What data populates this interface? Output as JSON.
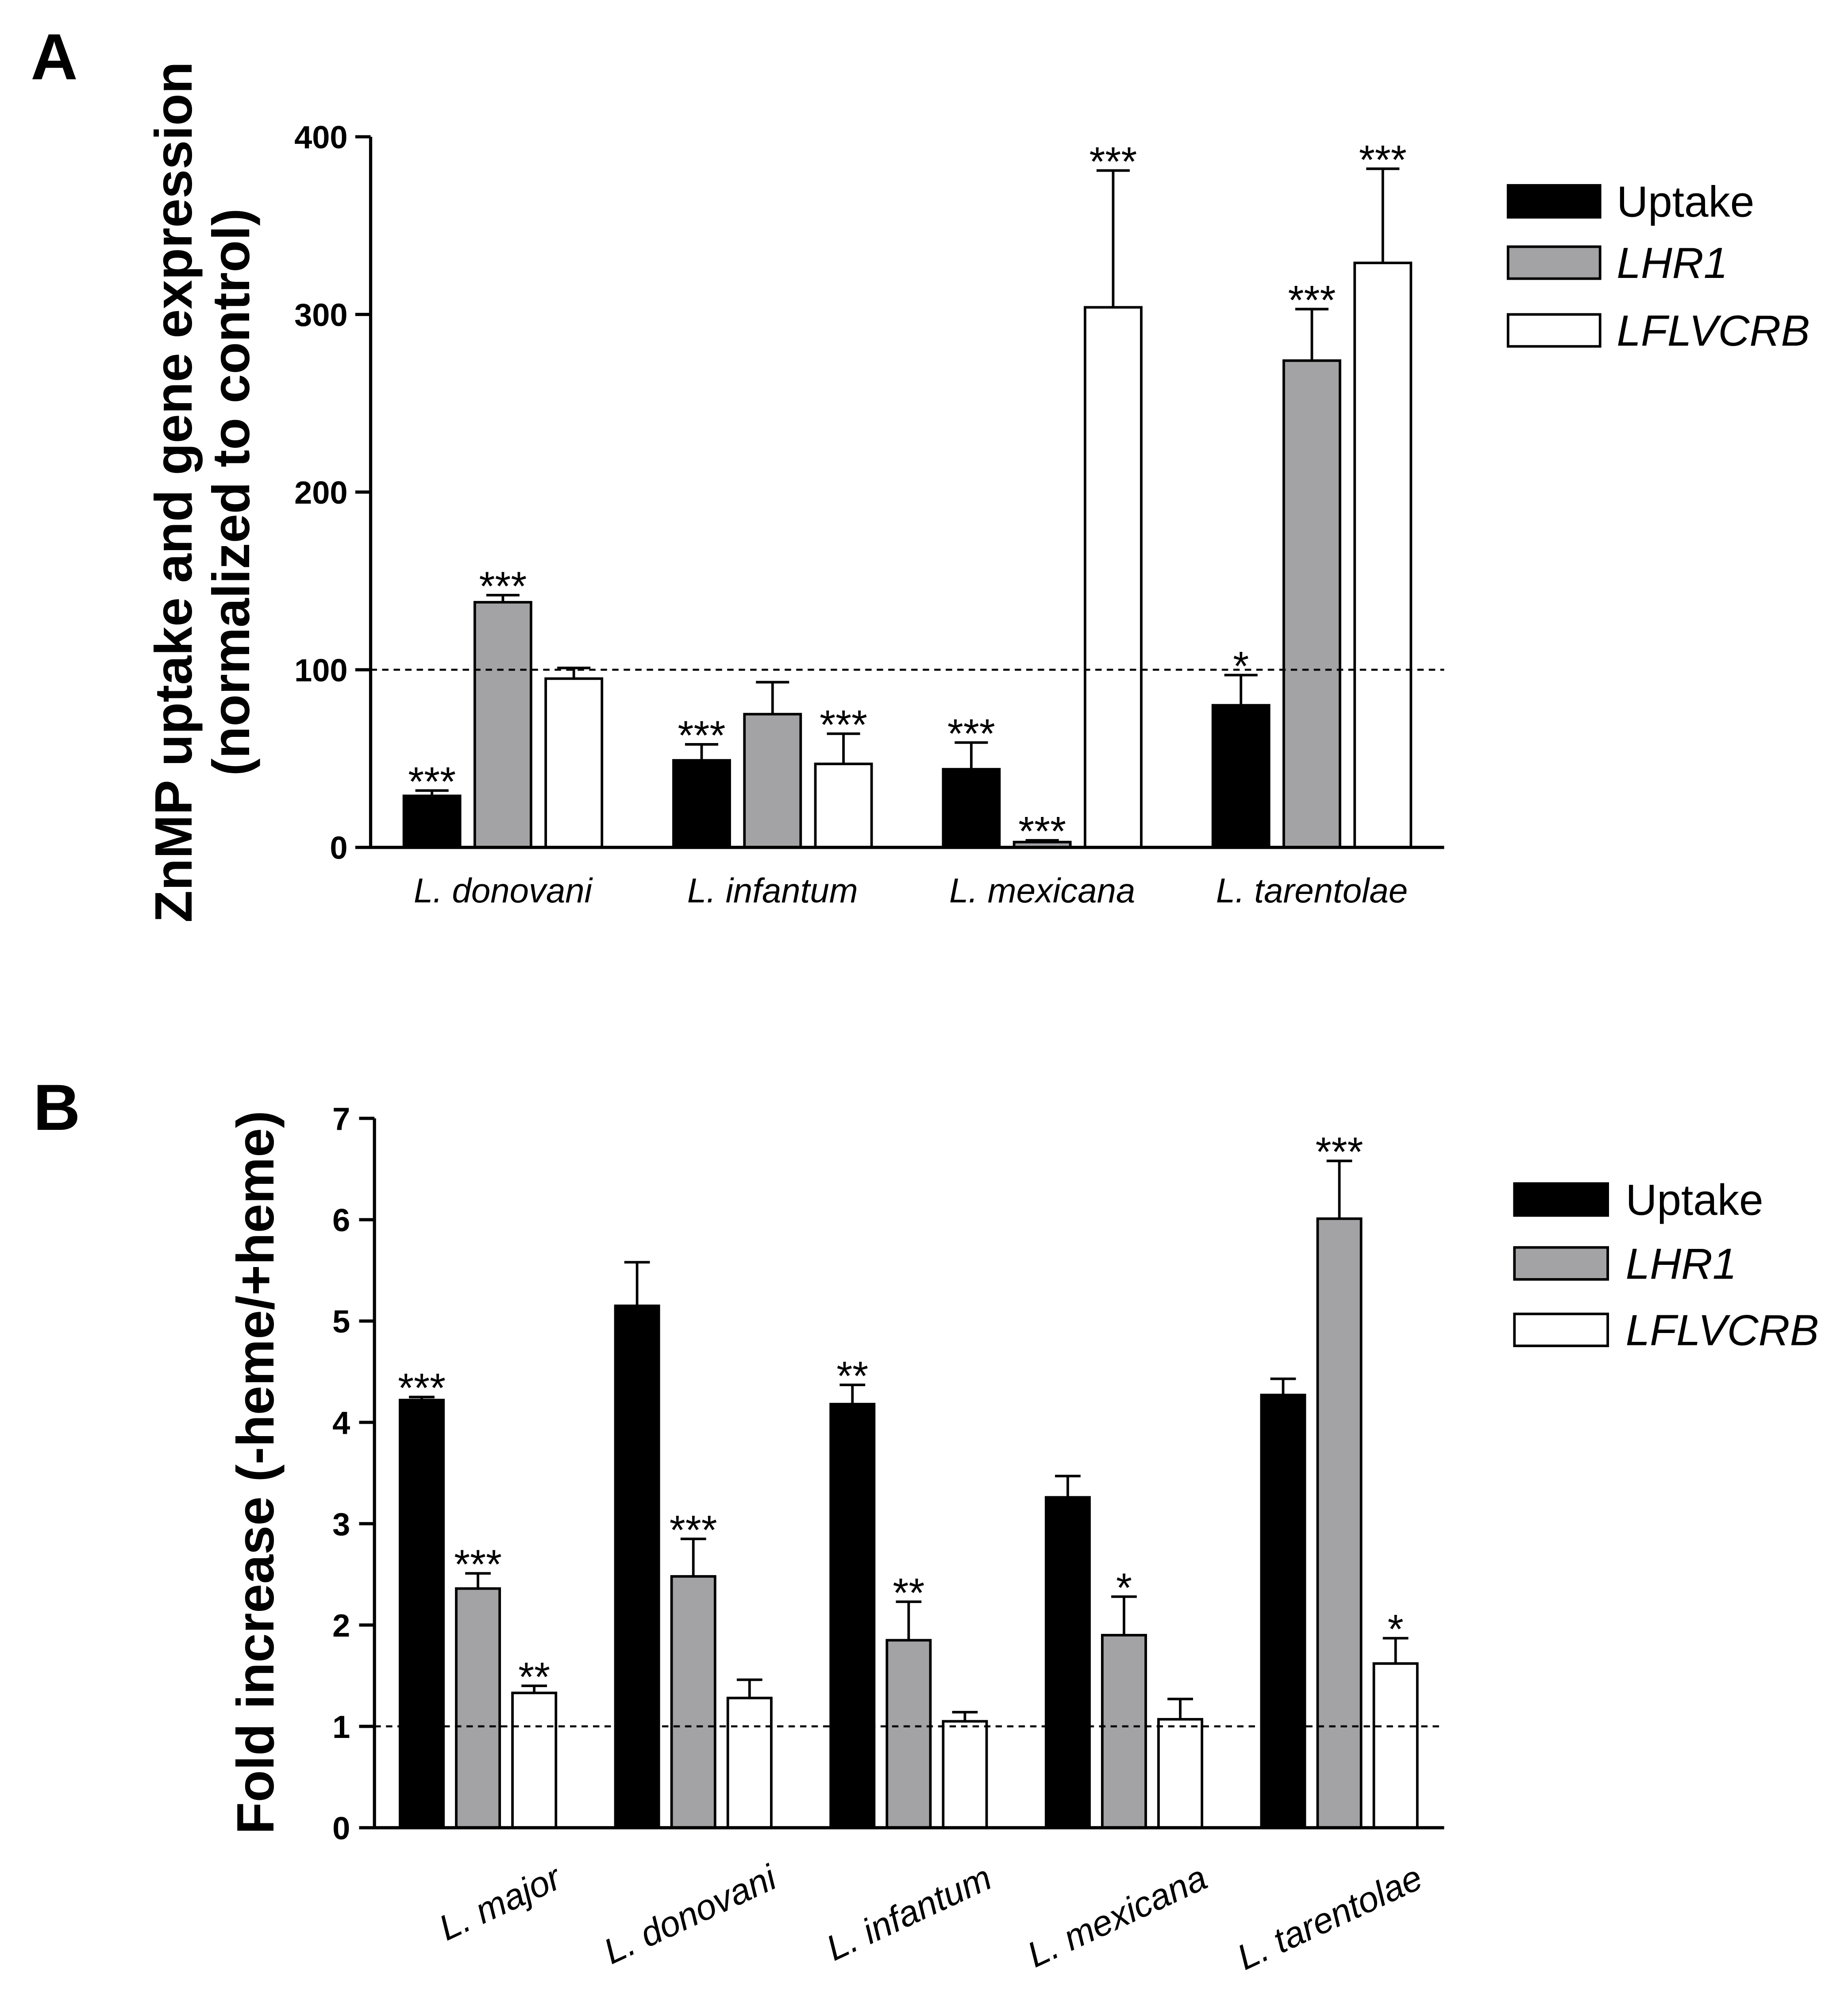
{
  "chart_data": [
    {
      "panel": "A",
      "type": "bar",
      "categories": [
        "L. donovani",
        "L. infantum",
        "L. mexicana",
        "L. tarentolae"
      ],
      "series": [
        {
          "name": "Uptake",
          "color": "#000000",
          "values": [
            29,
            49,
            44,
            80
          ],
          "errors": [
            3,
            9,
            15,
            17
          ],
          "significance": [
            "***",
            "***",
            "***",
            "*"
          ]
        },
        {
          "name": "LHR1",
          "color": "#a3a3a6",
          "values": [
            138,
            75,
            3,
            274
          ],
          "errors": [
            4,
            18,
            1,
            29
          ],
          "significance": [
            "***",
            null,
            "***",
            "***"
          ]
        },
        {
          "name": "LFLVCRB",
          "color": "#ffffff",
          "values": [
            95,
            47,
            304,
            329
          ],
          "errors": [
            6,
            17,
            77,
            53
          ],
          "significance": [
            null,
            "***",
            "***",
            "***"
          ]
        }
      ],
      "ylabel": [
        "ZnMP uptake and gene expression",
        "(normalized to control)"
      ],
      "ylim": [
        0,
        400
      ],
      "yticks": [
        0,
        100,
        200,
        300,
        400
      ],
      "reference_line": 100,
      "legend_position": "right",
      "grid": false
    },
    {
      "panel": "B",
      "type": "bar",
      "categories": [
        "L. major",
        "L. donovani",
        "L. infantum",
        "L. mexicana",
        "L. tarentolae"
      ],
      "series": [
        {
          "name": "Uptake",
          "color": "#000000",
          "values": [
            4.22,
            5.15,
            4.18,
            3.26,
            4.27
          ],
          "errors": [
            0.03,
            0.43,
            0.19,
            0.21,
            0.16
          ],
          "significance": [
            "***",
            null,
            "**",
            null,
            null
          ]
        },
        {
          "name": "LHR1",
          "color": "#a3a3a6",
          "values": [
            2.36,
            2.48,
            1.85,
            1.9,
            6.01
          ],
          "errors": [
            0.15,
            0.37,
            0.38,
            0.38,
            0.57
          ],
          "significance": [
            "***",
            "***",
            "**",
            "*",
            "***"
          ]
        },
        {
          "name": "LFLVCRB",
          "color": "#ffffff",
          "values": [
            1.33,
            1.28,
            1.05,
            1.07,
            1.62
          ],
          "errors": [
            0.07,
            0.18,
            0.09,
            0.2,
            0.25
          ],
          "significance": [
            "**",
            null,
            null,
            null,
            "*"
          ]
        }
      ],
      "ylabel": [
        "Fold increase (-heme/+heme)"
      ],
      "ylim": [
        0,
        7
      ],
      "yticks": [
        0,
        1,
        2,
        3,
        4,
        5,
        6,
        7
      ],
      "reference_line": 1,
      "legend_position": "right",
      "grid": false
    }
  ]
}
